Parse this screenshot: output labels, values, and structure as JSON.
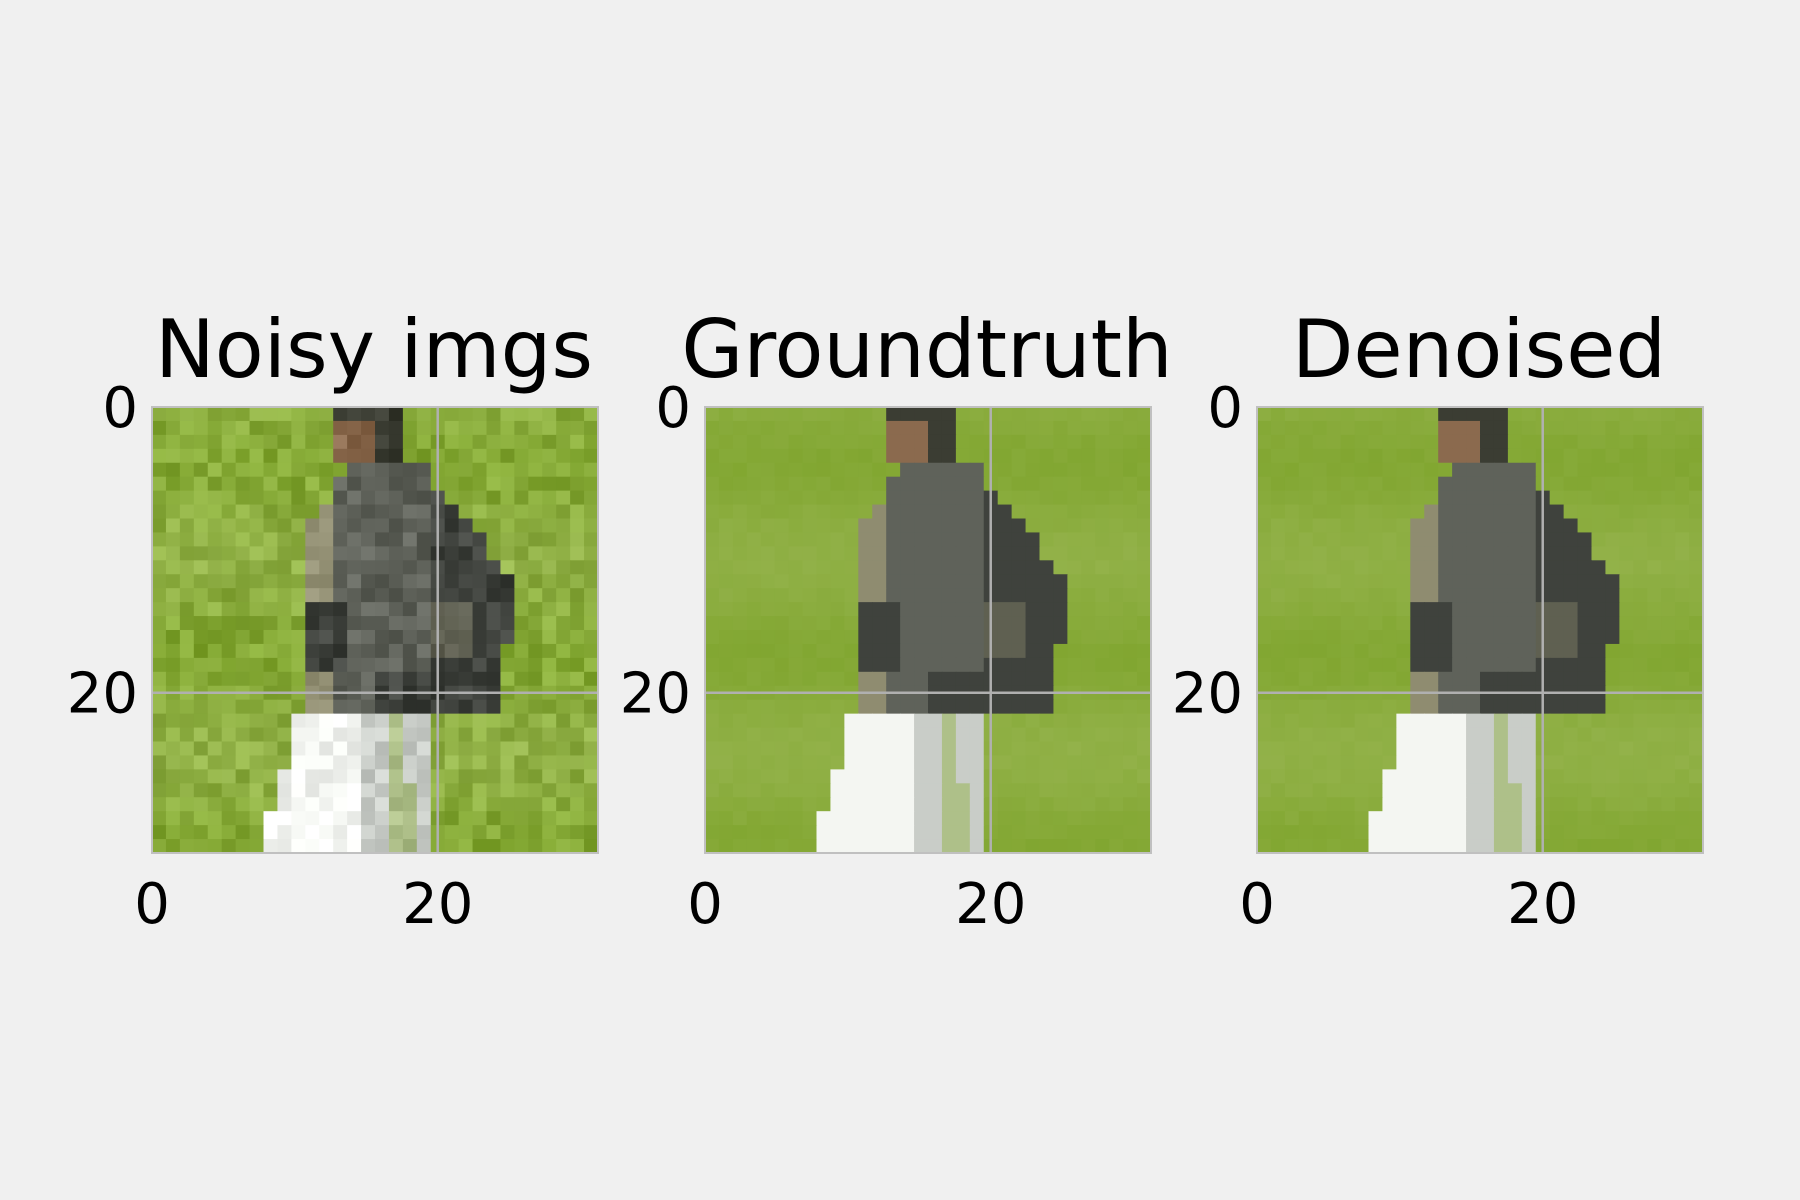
{
  "chart_data": [
    {
      "type": "heatmap",
      "title": "Noisy imgs",
      "xlim": [
        0,
        31
      ],
      "ylim": [
        31,
        0
      ],
      "xticks": [
        0,
        20
      ],
      "yticks": [
        0,
        20
      ],
      "grid": true,
      "image": "image",
      "noise": 1
    },
    {
      "type": "heatmap",
      "title": "Groundtruth",
      "xlim": [
        0,
        31
      ],
      "ylim": [
        31,
        0
      ],
      "xticks": [
        0,
        20
      ],
      "yticks": [
        0,
        20
      ],
      "grid": true,
      "image": "image",
      "noise": 0
    },
    {
      "type": "heatmap",
      "title": "Denoised",
      "xlim": [
        0,
        31
      ],
      "ylim": [
        31,
        0
      ],
      "xticks": [
        0,
        20
      ],
      "yticks": [
        0,
        20
      ],
      "grid": true,
      "image": "image",
      "noise": 0
    }
  ],
  "colors": {
    "background": "#f0f0f0",
    "grass_light": "#93b24a",
    "grass_dark": "#7ea42c",
    "jacket": "#5f625a",
    "jacket_dark": "#3f423d",
    "khaki": "#8f8c70",
    "head": "#8b6a4e",
    "hair": "#3b3d33",
    "pants": "#f4f6f2",
    "pants_shadow": "#c9cdc8",
    "grid": "#b0b0b0"
  }
}
